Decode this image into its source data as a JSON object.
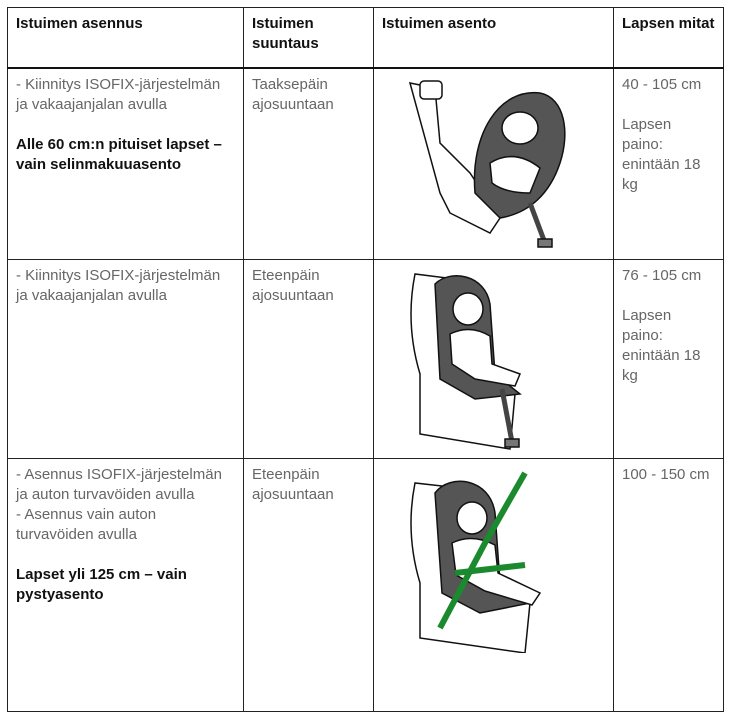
{
  "table": {
    "header": [
      "Istuimen asennus",
      "Istuimen suuntaus",
      "Istuimen asento",
      "Lapsen mitat"
    ],
    "rows": [
      {
        "installation": [
          "- Kiinnitys ISOFIX-järjestelmän ja vakaajanjalan avulla"
        ],
        "note": "Alle 60 cm:n pituiset lapset – vain selinmakuuasento",
        "direction": "Taaksepäin ajosuuntaan",
        "size": [
          "40 - 105 cm",
          "Lapsen paino: enintään 18 kg"
        ]
      },
      {
        "installation": [
          "- Kiinnitys ISOFIX-järjestelmän ja vakaajanjalan avulla"
        ],
        "direction": "Eteenpäin ajosuuntaan",
        "size": [
          "76 - 105 cm",
          "Lapsen paino: enintään 18 kg"
        ]
      },
      {
        "installation": [
          "- Asennus ISOFIX-järjestelmän ja auton turvavöiden avulla",
          "- Asennus vain auton turvavöiden avulla"
        ],
        "note": "Lapset yli 125 cm – vain pystyasento",
        "direction": "Eteenpäin ajosuuntaan",
        "size": [
          "100 - 150 cm"
        ]
      }
    ]
  }
}
